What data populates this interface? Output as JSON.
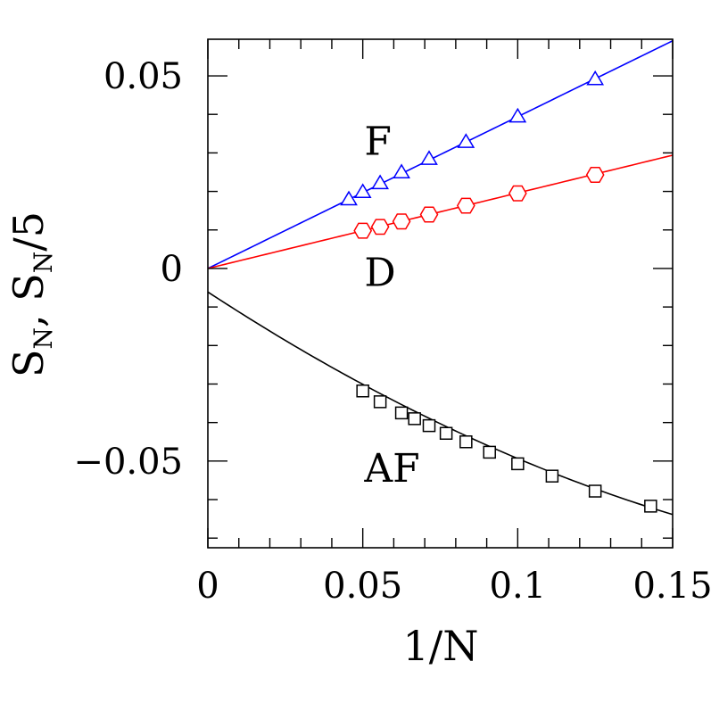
{
  "chart_data": {
    "type": "scatter",
    "title": "",
    "xlabel": "1/N",
    "ylabel_main": "S",
    "ylabel_sub": "N",
    "ylabel_sep": ",  ",
    "ylabel_main2": "S",
    "ylabel_sub2": "N",
    "ylabel_suffix": "/5",
    "xlim": [
      0,
      0.15
    ],
    "ylim": [
      -0.0725,
      0.0595
    ],
    "x_ticks": [
      0,
      0.05,
      0.1,
      0.15
    ],
    "x_tick_labels": [
      "0",
      "0.05",
      "0.1",
      "0.15"
    ],
    "y_ticks": [
      -0.05,
      0,
      0.05
    ],
    "y_tick_labels": [
      "−0.05",
      "0",
      "0.05"
    ],
    "x_minor_step": 0.01,
    "y_minor_step": 0.01,
    "grid": false,
    "legend": "none",
    "series": [
      {
        "name": "F",
        "color": "#0000ff",
        "marker": "triangle",
        "x": [
          0.0455,
          0.05,
          0.0556,
          0.0625,
          0.0714,
          0.0833,
          0.1,
          0.125
        ],
        "y": [
          0.0178,
          0.0197,
          0.022,
          0.0248,
          0.0283,
          0.0327,
          0.0393,
          0.049
        ],
        "fit": {
          "form": "linear",
          "a": 0,
          "b": 0.394,
          "x_range": [
            0,
            0.15
          ]
        }
      },
      {
        "name": "D",
        "color": "#ff0000",
        "marker": "hexagon",
        "x": [
          0.05,
          0.0556,
          0.0625,
          0.0714,
          0.0833,
          0.1,
          0.125
        ],
        "y": [
          0.0098,
          0.0108,
          0.0122,
          0.014,
          0.0163,
          0.0195,
          0.0243
        ],
        "fit": {
          "form": "linear",
          "a": 0,
          "b": 0.196,
          "x_range": [
            0,
            0.15
          ]
        }
      },
      {
        "name": "AF",
        "color": "#000000",
        "marker": "square",
        "x": [
          0.05,
          0.0556,
          0.0625,
          0.0667,
          0.0714,
          0.0769,
          0.0833,
          0.0909,
          0.1,
          0.1111,
          0.125,
          0.1429
        ],
        "y": [
          -0.0318,
          -0.0346,
          -0.0375,
          -0.039,
          -0.0408,
          -0.0428,
          -0.045,
          -0.0477,
          -0.0507,
          -0.0539,
          -0.0578,
          -0.0617
        ],
        "fit": {
          "form": "quadratic",
          "a": -0.0061,
          "b": -0.5267,
          "c": 0.9433,
          "x_range": [
            0,
            0.15
          ]
        }
      }
    ],
    "annotations": [
      {
        "text": "F",
        "x": 0.0505,
        "y": 0.0332
      },
      {
        "text": "D",
        "x": 0.0505,
        "y": -0.0008
      },
      {
        "text": "AF",
        "x": 0.0505,
        "y": -0.0517
      }
    ]
  }
}
